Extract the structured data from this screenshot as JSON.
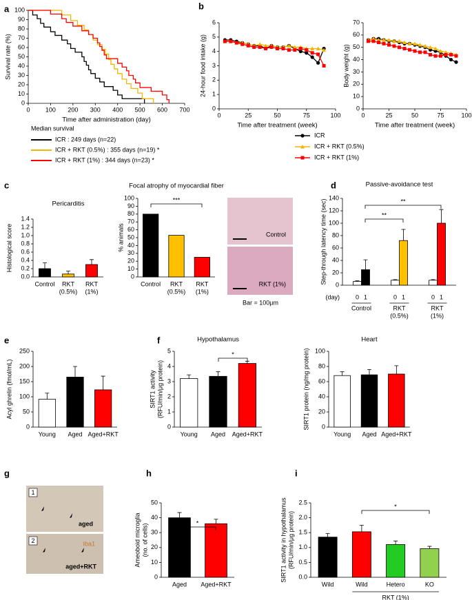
{
  "chart_data": [
    {
      "panel": "a",
      "type": "line",
      "xlabel": "Time after administration (day)",
      "ylabel": "Survival rate (%)",
      "xlim": [
        0,
        700
      ],
      "xticks": [
        0,
        100,
        200,
        300,
        400,
        500,
        600,
        700
      ],
      "ylim": [
        0,
        100
      ],
      "yticks": [
        0,
        10,
        20,
        30,
        40,
        50,
        60,
        70,
        80,
        90,
        100
      ],
      "legend_title": "Median survival",
      "series": [
        {
          "name": "ICR : 249 days (n=22)",
          "color": "#000000",
          "x": [
            0,
            20,
            20,
            40,
            40,
            55,
            55,
            70,
            70,
            100,
            100,
            120,
            120,
            150,
            150,
            175,
            175,
            190,
            190,
            210,
            210,
            240,
            240,
            250,
            250,
            260,
            260,
            270,
            270,
            280,
            280,
            300,
            300,
            320,
            320,
            340,
            340,
            380,
            380,
            400,
            400,
            420,
            420,
            520,
            520
          ],
          "values": [
            100,
            100,
            95,
            95,
            91,
            91,
            86,
            86,
            82,
            82,
            77,
            77,
            73,
            73,
            68,
            68,
            64,
            64,
            59,
            59,
            55,
            55,
            50,
            50,
            45,
            45,
            41,
            41,
            36,
            36,
            32,
            32,
            27,
            27,
            23,
            23,
            18,
            18,
            14,
            14,
            9,
            9,
            5,
            5,
            0
          ]
        },
        {
          "name": "ICR + RKT (0.5%) : 355 days (n=19) *",
          "color": "#f5b400",
          "x": [
            0,
            150,
            150,
            190,
            190,
            220,
            220,
            250,
            250,
            270,
            270,
            290,
            290,
            310,
            310,
            330,
            330,
            345,
            345,
            360,
            360,
            370,
            370,
            385,
            385,
            400,
            400,
            420,
            420,
            440,
            440,
            460,
            460,
            490,
            490,
            510,
            510,
            560,
            560
          ],
          "values": [
            100,
            100,
            95,
            95,
            89,
            89,
            84,
            84,
            79,
            79,
            74,
            74,
            68,
            68,
            63,
            63,
            58,
            58,
            53,
            53,
            47,
            47,
            42,
            42,
            37,
            37,
            32,
            32,
            26,
            26,
            21,
            21,
            16,
            16,
            11,
            11,
            5,
            5,
            0
          ]
        },
        {
          "name": "ICR + RKT (1%) : 344 days (n=23) *",
          "color": "#ff0000",
          "x": [
            0,
            100,
            100,
            150,
            150,
            170,
            170,
            200,
            200,
            240,
            240,
            270,
            270,
            290,
            290,
            310,
            310,
            320,
            320,
            330,
            330,
            340,
            340,
            350,
            350,
            400,
            400,
            420,
            420,
            440,
            440,
            450,
            450,
            470,
            470,
            480,
            480,
            500,
            500,
            550,
            550,
            600,
            600,
            620,
            620,
            630,
            630
          ],
          "values": [
            100,
            100,
            96,
            96,
            91,
            91,
            87,
            87,
            83,
            83,
            78,
            78,
            74,
            74,
            70,
            70,
            65,
            65,
            61,
            61,
            57,
            57,
            52,
            52,
            48,
            48,
            43,
            43,
            39,
            39,
            35,
            35,
            30,
            30,
            26,
            26,
            22,
            22,
            17,
            17,
            13,
            13,
            9,
            9,
            4,
            4,
            0
          ]
        }
      ]
    },
    {
      "panel": "b",
      "type": "line",
      "xlabel": "Time after treatment (week)",
      "ylabel": "24-hour food intake (g)",
      "xlim": [
        0,
        100
      ],
      "xticks": [
        0,
        25,
        50,
        75,
        100
      ],
      "ylim": [
        0,
        6
      ],
      "yticks": [
        0,
        1,
        2,
        3,
        4,
        5,
        6
      ],
      "x": [
        5,
        10,
        15,
        20,
        25,
        30,
        35,
        40,
        45,
        50,
        55,
        60,
        65,
        70,
        75,
        80,
        85,
        90
      ],
      "series": [
        {
          "name": "ICR",
          "color": "#000000",
          "marker": "circle",
          "values": [
            4.8,
            4.8,
            4.7,
            4.6,
            4.5,
            4.4,
            4.4,
            4.2,
            4.4,
            4.3,
            4.3,
            4.4,
            4.2,
            4.0,
            3.9,
            3.6,
            3.2,
            4.2
          ]
        },
        {
          "name": "ICR + RKT (0.5%)",
          "color": "#f5b400",
          "marker": "triangle",
          "values": [
            4.7,
            4.7,
            4.6,
            4.6,
            4.5,
            4.4,
            4.5,
            4.4,
            4.4,
            4.3,
            4.3,
            4.4,
            4.3,
            4.3,
            4.2,
            4.2,
            4.2,
            4.1
          ]
        },
        {
          "name": "ICR + RKT (1%)",
          "color": "#ff0000",
          "marker": "square",
          "values": [
            4.7,
            4.7,
            4.6,
            4.5,
            4.4,
            4.3,
            4.3,
            4.2,
            4.3,
            4.2,
            4.2,
            4.1,
            4.1,
            4.2,
            4.1,
            3.9,
            3.8,
            3.0
          ]
        }
      ]
    },
    {
      "type": "line",
      "xlabel": "Time after treatment (week)",
      "ylabel": "Body weight (g)",
      "xlim": [
        0,
        100
      ],
      "xticks": [
        0,
        25,
        50,
        75,
        100
      ],
      "ylim": [
        0,
        70
      ],
      "yticks": [
        0,
        10,
        20,
        30,
        40,
        50,
        60,
        70
      ],
      "x": [
        5,
        10,
        15,
        20,
        25,
        30,
        35,
        40,
        45,
        50,
        55,
        60,
        65,
        70,
        75,
        80,
        85,
        90
      ],
      "series": [
        {
          "color": "#000000",
          "marker": "circle",
          "values": [
            56,
            57,
            57,
            56,
            55,
            55,
            54,
            53,
            53,
            52,
            51,
            50,
            48,
            47,
            46,
            43,
            40,
            38
          ]
        },
        {
          "color": "#f5b400",
          "marker": "triangle",
          "values": [
            56,
            57,
            56,
            56,
            56,
            55,
            55,
            54,
            53,
            53,
            52,
            51,
            50,
            49,
            47,
            46,
            45,
            44
          ]
        },
        {
          "color": "#ff0000",
          "marker": "square",
          "values": [
            55,
            55,
            54,
            53,
            52,
            51,
            50,
            49,
            48,
            47,
            46,
            46,
            44,
            43,
            43,
            44,
            44,
            43
          ]
        }
      ]
    },
    {
      "panel": "c",
      "type": "bar",
      "title": "Pericarditis",
      "ylabel": "Histological score",
      "categories": [
        [
          "Control"
        ],
        [
          "RKT",
          "(0.5%)"
        ],
        [
          "RKT",
          "(1%)"
        ]
      ],
      "values": [
        0.2,
        0.07,
        0.3
      ],
      "errors": [
        0.14,
        0.07,
        0.12
      ],
      "colors": [
        "#000000",
        "#ffc000",
        "#ff0000"
      ],
      "ylim": [
        0,
        1.4
      ],
      "yticks": [
        {
          "value": 0,
          "label": "0.0"
        },
        0.2,
        0.4,
        0.6,
        0.8,
        {
          "value": 1,
          "label": "1.0"
        },
        1.2,
        1.4
      ]
    },
    {
      "type": "bar",
      "title": "Focal atrophy of myocardial fiber",
      "ylabel": "% animals",
      "categories": [
        [
          "Control"
        ],
        [
          "RKT",
          "(0.5%)"
        ],
        [
          "RKT",
          "(1%)"
        ]
      ],
      "values": [
        80,
        53,
        25
      ],
      "colors": [
        "#000000",
        "#ffc000",
        "#ff0000"
      ],
      "ylim": [
        0,
        100
      ],
      "yticks": [
        0,
        10,
        20,
        30,
        40,
        50,
        60,
        70,
        80,
        90,
        100
      ],
      "significance": [
        "***"
      ]
    },
    {
      "panel": "d",
      "type": "groupedbar",
      "title": "Passive-avoidance test",
      "ylabel": "Step-through latency time (sec)",
      "series_label": "(day)",
      "categories": [
        [
          "Control"
        ],
        [
          "RKT",
          "(0.5%)"
        ],
        [
          "RKT",
          "(1%)"
        ]
      ],
      "series": [
        {
          "name": "0",
          "values": [
            6,
            8,
            8
          ],
          "errors": [
            1,
            1,
            1
          ],
          "colors": [
            "#ffffff",
            "#ffffff",
            "#ffffff"
          ]
        },
        {
          "name": "1",
          "values": [
            25,
            72,
            100
          ],
          "errors": [
            16,
            18,
            22
          ],
          "colors": [
            "#000000",
            "#ffc000",
            "#ff0000"
          ]
        }
      ],
      "ylim": [
        0,
        140
      ],
      "yticks": [
        0,
        20,
        40,
        60,
        80,
        100,
        120,
        140
      ],
      "significance": [
        "**",
        "**"
      ]
    },
    {
      "panel": "e",
      "type": "bar",
      "ylabel": "Acyl ghrelin (fmol/mL)",
      "categories": [
        "Young",
        "Aged",
        "Aged+RKT"
      ],
      "values": [
        92,
        165,
        123
      ],
      "errors": [
        20,
        35,
        45
      ],
      "colors": [
        "#ffffff",
        "#000000",
        "#ff0000"
      ],
      "ylim": [
        0,
        250
      ],
      "yticks": [
        0,
        50,
        100,
        150,
        200,
        250
      ]
    },
    {
      "panel": "f",
      "type": "bar",
      "title": "Hypothalamus",
      "ylabel": [
        "SIRT1 activity",
        "(RFU/min/μg protein)"
      ],
      "categories": [
        "Young",
        "Aged",
        "Aged+RKT"
      ],
      "values": [
        3.2,
        3.35,
        4.2
      ],
      "errors": [
        0.25,
        0.3,
        0.15
      ],
      "colors": [
        "#ffffff",
        "#000000",
        "#ff0000"
      ],
      "ylim": [
        0,
        5
      ],
      "yticks": [
        0,
        1,
        2,
        3,
        4,
        5
      ],
      "significance": [
        "*"
      ]
    },
    {
      "type": "bar",
      "title": "Heart",
      "ylabel": "SIRT1 protein (ng/mg protein)",
      "categories": [
        "Young",
        "Aged",
        "Aged+RKT"
      ],
      "values": [
        68,
        69,
        70
      ],
      "errors": [
        5,
        7,
        11
      ],
      "colors": [
        "#ffffff",
        "#000000",
        "#ff0000"
      ],
      "ylim": [
        0,
        100
      ],
      "yticks": [
        0,
        20,
        40,
        60,
        80,
        100
      ]
    },
    {
      "panel": "h",
      "type": "bar",
      "ylabel": [
        "Ameoboid microglia",
        "(no. of cells)"
      ],
      "categories": [
        "Aged",
        "Aged+RKT"
      ],
      "values": [
        40,
        36
      ],
      "errors": [
        3.5,
        3
      ],
      "colors": [
        "#000000",
        "#ff0000"
      ],
      "ylim": [
        0,
        50
      ],
      "yticks": [
        0,
        10,
        20,
        30,
        40,
        50
      ],
      "significance": [
        "*"
      ]
    },
    {
      "panel": "i",
      "type": "bar",
      "ylabel": [
        "SIRT1 activity in  hypothalamus",
        "(RFU/min/μg protein)"
      ],
      "categories": [
        "Wild",
        "Wild",
        "Hetero",
        "KO"
      ],
      "group_label": "RKT (1%)",
      "values": [
        1.35,
        1.53,
        1.1,
        0.96
      ],
      "errors": [
        0.12,
        0.22,
        0.12,
        0.08
      ],
      "colors": [
        "#000000",
        "#ff0000",
        "#22cc22",
        "#92d050"
      ],
      "ylim": [
        0,
        2.5
      ],
      "yticks": [
        {
          "value": 0,
          "label": "0.0"
        },
        0.5,
        {
          "value": 1,
          "label": "1.0"
        },
        1.5,
        {
          "value": 2,
          "label": "2.0"
        },
        2.5
      ],
      "significance": [
        "*"
      ]
    }
  ],
  "histology": {
    "image_labels": [
      "Control",
      "RKT (1%)"
    ],
    "scale_note": "Bar = 100μm"
  },
  "microglia_images": {
    "panel": "g",
    "image_numbers": [
      "1",
      "2"
    ],
    "captions": [
      "aged",
      "aged+RKT"
    ],
    "stain": "Iba1"
  }
}
